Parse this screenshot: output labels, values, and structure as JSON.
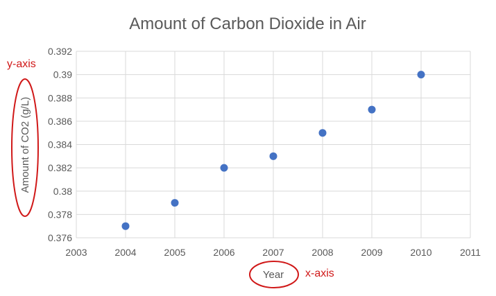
{
  "chart_data": {
    "type": "scatter",
    "title": "Amount of Carbon Dioxide in Air",
    "xlabel": "Year",
    "ylabel": "Amount of CO2 (g/L)",
    "x": [
      2004,
      2005,
      2006,
      2007,
      2008,
      2009,
      2010
    ],
    "y": [
      0.377,
      0.379,
      0.382,
      0.383,
      0.385,
      0.387,
      0.39
    ],
    "xlim": [
      2003,
      2011
    ],
    "ylim": [
      0.376,
      0.392
    ],
    "x_ticks": [
      "2003",
      "2004",
      "2005",
      "2006",
      "2007",
      "2008",
      "2009",
      "2010",
      "2011"
    ],
    "y_ticks": [
      "0.376",
      "0.378",
      "0.38",
      "0.382",
      "0.384",
      "0.386",
      "0.388",
      "0.39",
      "0.392"
    ],
    "grid": "on",
    "legend": "none",
    "marker_color": "#4472c4"
  },
  "annotations": {
    "y_axis_label": "y-axis",
    "x_axis_label": "x-axis",
    "color": "#d01818"
  }
}
